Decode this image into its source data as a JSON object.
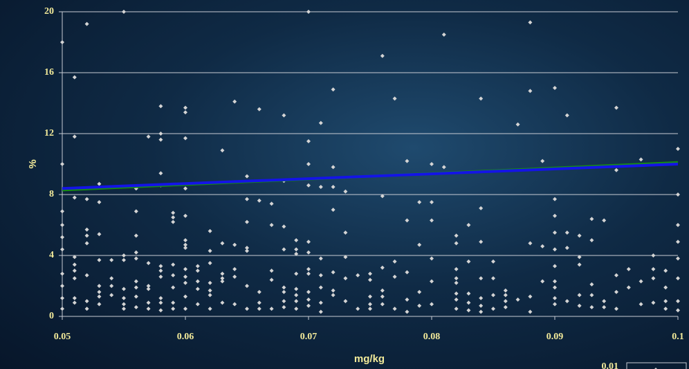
{
  "chart_data": {
    "type": "scatter",
    "y_label": "%",
    "x_label": "mg/kg",
    "xlim": [
      0.05,
      0.1
    ],
    "xticks": [
      0.05,
      0.06,
      0.07,
      0.08,
      0.09,
      0.1
    ],
    "ylim": [
      0,
      20
    ],
    "yticks": [
      0,
      4,
      8,
      12,
      16,
      20
    ],
    "grid": true,
    "legend": "bottom-right",
    "series": [
      {
        "name": "0.01",
        "type": "scatter",
        "color": "#d4d4d4",
        "x": [
          0.05,
          0.05,
          0.05,
          0.05,
          0.05,
          0.05,
          0.05,
          0.05,
          0.05,
          0.05,
          0.051,
          0.051,
          0.051,
          0.051,
          0.051,
          0.051,
          0.051,
          0.051,
          0.051,
          0.052,
          0.052,
          0.052,
          0.052,
          0.052,
          0.052,
          0.052,
          0.052,
          0.053,
          0.053,
          0.053,
          0.053,
          0.053,
          0.053,
          0.053,
          0.053,
          0.054,
          0.054,
          0.054,
          0.054,
          0.055,
          0.055,
          0.055,
          0.055,
          0.055,
          0.055,
          0.055,
          0.056,
          0.056,
          0.056,
          0.056,
          0.056,
          0.056,
          0.056,
          0.056,
          0.056,
          0.057,
          0.057,
          0.057,
          0.057,
          0.057,
          0.057,
          0.058,
          0.058,
          0.058,
          0.058,
          0.058,
          0.058,
          0.058,
          0.058,
          0.058,
          0.058,
          0.058,
          0.059,
          0.059,
          0.059,
          0.059,
          0.059,
          0.059,
          0.059,
          0.059,
          0.06,
          0.06,
          0.06,
          0.06,
          0.06,
          0.06,
          0.06,
          0.06,
          0.06,
          0.06,
          0.06,
          0.06,
          0.06,
          0.061,
          0.061,
          0.061,
          0.061,
          0.061,
          0.062,
          0.062,
          0.062,
          0.062,
          0.062,
          0.062,
          0.062,
          0.063,
          0.063,
          0.063,
          0.063,
          0.063,
          0.063,
          0.064,
          0.064,
          0.064,
          0.064,
          0.064,
          0.065,
          0.065,
          0.065,
          0.065,
          0.065,
          0.065,
          0.065,
          0.066,
          0.066,
          0.066,
          0.066,
          0.066,
          0.067,
          0.067,
          0.067,
          0.067,
          0.067,
          0.068,
          0.068,
          0.068,
          0.068,
          0.068,
          0.068,
          0.068,
          0.068,
          0.069,
          0.069,
          0.069,
          0.069,
          0.069,
          0.069,
          0.069,
          0.069,
          0.07,
          0.07,
          0.07,
          0.07,
          0.07,
          0.07,
          0.07,
          0.07,
          0.07,
          0.07,
          0.07,
          0.071,
          0.071,
          0.071,
          0.071,
          0.071,
          0.071,
          0.071,
          0.072,
          0.072,
          0.072,
          0.072,
          0.072,
          0.072,
          0.072,
          0.073,
          0.073,
          0.073,
          0.073,
          0.073,
          0.074,
          0.074,
          0.075,
          0.075,
          0.075,
          0.075,
          0.075,
          0.076,
          0.076,
          0.076,
          0.076,
          0.076,
          0.076,
          0.077,
          0.077,
          0.077,
          0.077,
          0.078,
          0.078,
          0.078,
          0.078,
          0.078,
          0.079,
          0.079,
          0.079,
          0.079,
          0.08,
          0.08,
          0.08,
          0.08,
          0.08,
          0.08,
          0.081,
          0.081,
          0.082,
          0.082,
          0.082,
          0.082,
          0.082,
          0.082,
          0.082,
          0.082,
          0.083,
          0.083,
          0.083,
          0.083,
          0.083,
          0.084,
          0.084,
          0.084,
          0.084,
          0.084,
          0.084,
          0.084,
          0.085,
          0.085,
          0.085,
          0.085,
          0.086,
          0.086,
          0.086,
          0.086,
          0.087,
          0.087,
          0.088,
          0.088,
          0.088,
          0.088,
          0.088,
          0.089,
          0.089,
          0.089,
          0.09,
          0.09,
          0.09,
          0.09,
          0.09,
          0.09,
          0.09,
          0.09,
          0.09,
          0.09,
          0.091,
          0.091,
          0.091,
          0.091,
          0.092,
          0.092,
          0.092,
          0.092,
          0.092,
          0.093,
          0.093,
          0.093,
          0.093,
          0.093,
          0.094,
          0.094,
          0.094,
          0.095,
          0.095,
          0.095,
          0.095,
          0.095,
          0.096,
          0.096,
          0.097,
          0.097,
          0.097,
          0.098,
          0.098,
          0.098,
          0.098,
          0.099,
          0.099,
          0.099,
          0.099,
          0.1,
          0.1,
          0.1,
          0.1,
          0.1,
          0.1,
          0.1,
          0.1
        ],
        "values": [
          18,
          10,
          6.9,
          6,
          5.2,
          4.4,
          2.8,
          2,
          1.2,
          0.5,
          15.7,
          11.8,
          7.8,
          3.9,
          3.4,
          3,
          2.5,
          1.2,
          0.9,
          19.2,
          7.7,
          5.7,
          5.3,
          4.8,
          2.7,
          1,
          0.5,
          8.7,
          7.5,
          5.4,
          3.7,
          2,
          1.6,
          1.3,
          0.8,
          3.7,
          2.5,
          2,
          1.4,
          20,
          4,
          3.7,
          1.8,
          1.2,
          0.8,
          0.5,
          8.4,
          6.9,
          5.3,
          4.2,
          3.8,
          2.3,
          1.9,
          1.3,
          0.6,
          11.8,
          3.5,
          2,
          1.8,
          0.9,
          0.5,
          13.8,
          12,
          11.6,
          9.4,
          8.6,
          3.3,
          3,
          2.6,
          1.2,
          0.9,
          0.4,
          6.8,
          6.5,
          6.2,
          3.4,
          2.7,
          1.9,
          0.9,
          0.5,
          13.7,
          13.4,
          11.7,
          8.4,
          6.6,
          5,
          4.7,
          4.5,
          3.1,
          2.6,
          2.2,
          1.3,
          0.5,
          3.3,
          3,
          2.3,
          1.8,
          0.8,
          5.6,
          4.3,
          3.5,
          2.2,
          1.7,
          1.4,
          0.5,
          10.9,
          4.8,
          2.8,
          2.5,
          2.3,
          0.9,
          14.1,
          4.7,
          3.1,
          2.6,
          0.8,
          9.2,
          7.7,
          6.2,
          4.5,
          4.3,
          2,
          0.5,
          13.6,
          7.6,
          1.6,
          0.9,
          0.5,
          7.4,
          6,
          3,
          2.4,
          0.5,
          13.2,
          8.9,
          5.9,
          4.4,
          1.9,
          1.6,
          1,
          0.6,
          5,
          4.4,
          4.1,
          2.8,
          1.8,
          1.4,
          1,
          0.5,
          20,
          11.5,
          10,
          8.6,
          4.9,
          4.2,
          3.1,
          2.8,
          1.6,
          1.1,
          0.7,
          12.7,
          8.5,
          3.8,
          2.7,
          1.9,
          0.9,
          0.3,
          14.9,
          9.8,
          8.5,
          7,
          2.9,
          1.7,
          1.4,
          8.2,
          5.5,
          3.9,
          2.5,
          1,
          2.7,
          0.5,
          2.8,
          2.4,
          1.3,
          0.8,
          0.5,
          17.1,
          7.9,
          3.2,
          1.7,
          1.3,
          0.8,
          14.3,
          3.6,
          2.6,
          0.5,
          10.2,
          6.3,
          2.9,
          1.1,
          0.3,
          7.5,
          4.7,
          1.6,
          0.7,
          10,
          7.5,
          6.3,
          3.8,
          2.3,
          0.8,
          18.5,
          9.8,
          5.3,
          4.8,
          3.1,
          2.5,
          2.2,
          1.5,
          1.1,
          0.5,
          6,
          3.6,
          1.5,
          0.9,
          0.4,
          14.3,
          7.1,
          4.9,
          2.5,
          1.2,
          0.7,
          0.3,
          3.6,
          2.5,
          1.4,
          0.5,
          1.7,
          1.4,
          1,
          0.6,
          12.6,
          1.1,
          19.3,
          14.8,
          4.8,
          1.3,
          0.3,
          10.2,
          4.6,
          2.3,
          15,
          7.7,
          6.6,
          5.5,
          4.4,
          3.3,
          2.3,
          1.9,
          1.2,
          0.8,
          13.2,
          5.5,
          4.5,
          1,
          5.3,
          3.9,
          3.4,
          1.4,
          0.7,
          6.4,
          5,
          2.1,
          1.4,
          0.6,
          6.3,
          1,
          0.6,
          13.7,
          9.6,
          2.7,
          1.6,
          0.5,
          3.1,
          1.9,
          10.3,
          2.3,
          0.8,
          4,
          3.1,
          2.5,
          0.9,
          3,
          1.9,
          1,
          0.5,
          11,
          8,
          6,
          4.9,
          3.8,
          2.5,
          1,
          0.4
        ]
      },
      {
        "type": "line",
        "color": "#168a16",
        "x": [
          0.05,
          0.1
        ],
        "values": [
          8.3,
          10.1
        ]
      },
      {
        "type": "line",
        "color": "#1414e6",
        "x": [
          0.05,
          0.1
        ],
        "values": [
          8.4,
          10.0
        ]
      }
    ]
  }
}
